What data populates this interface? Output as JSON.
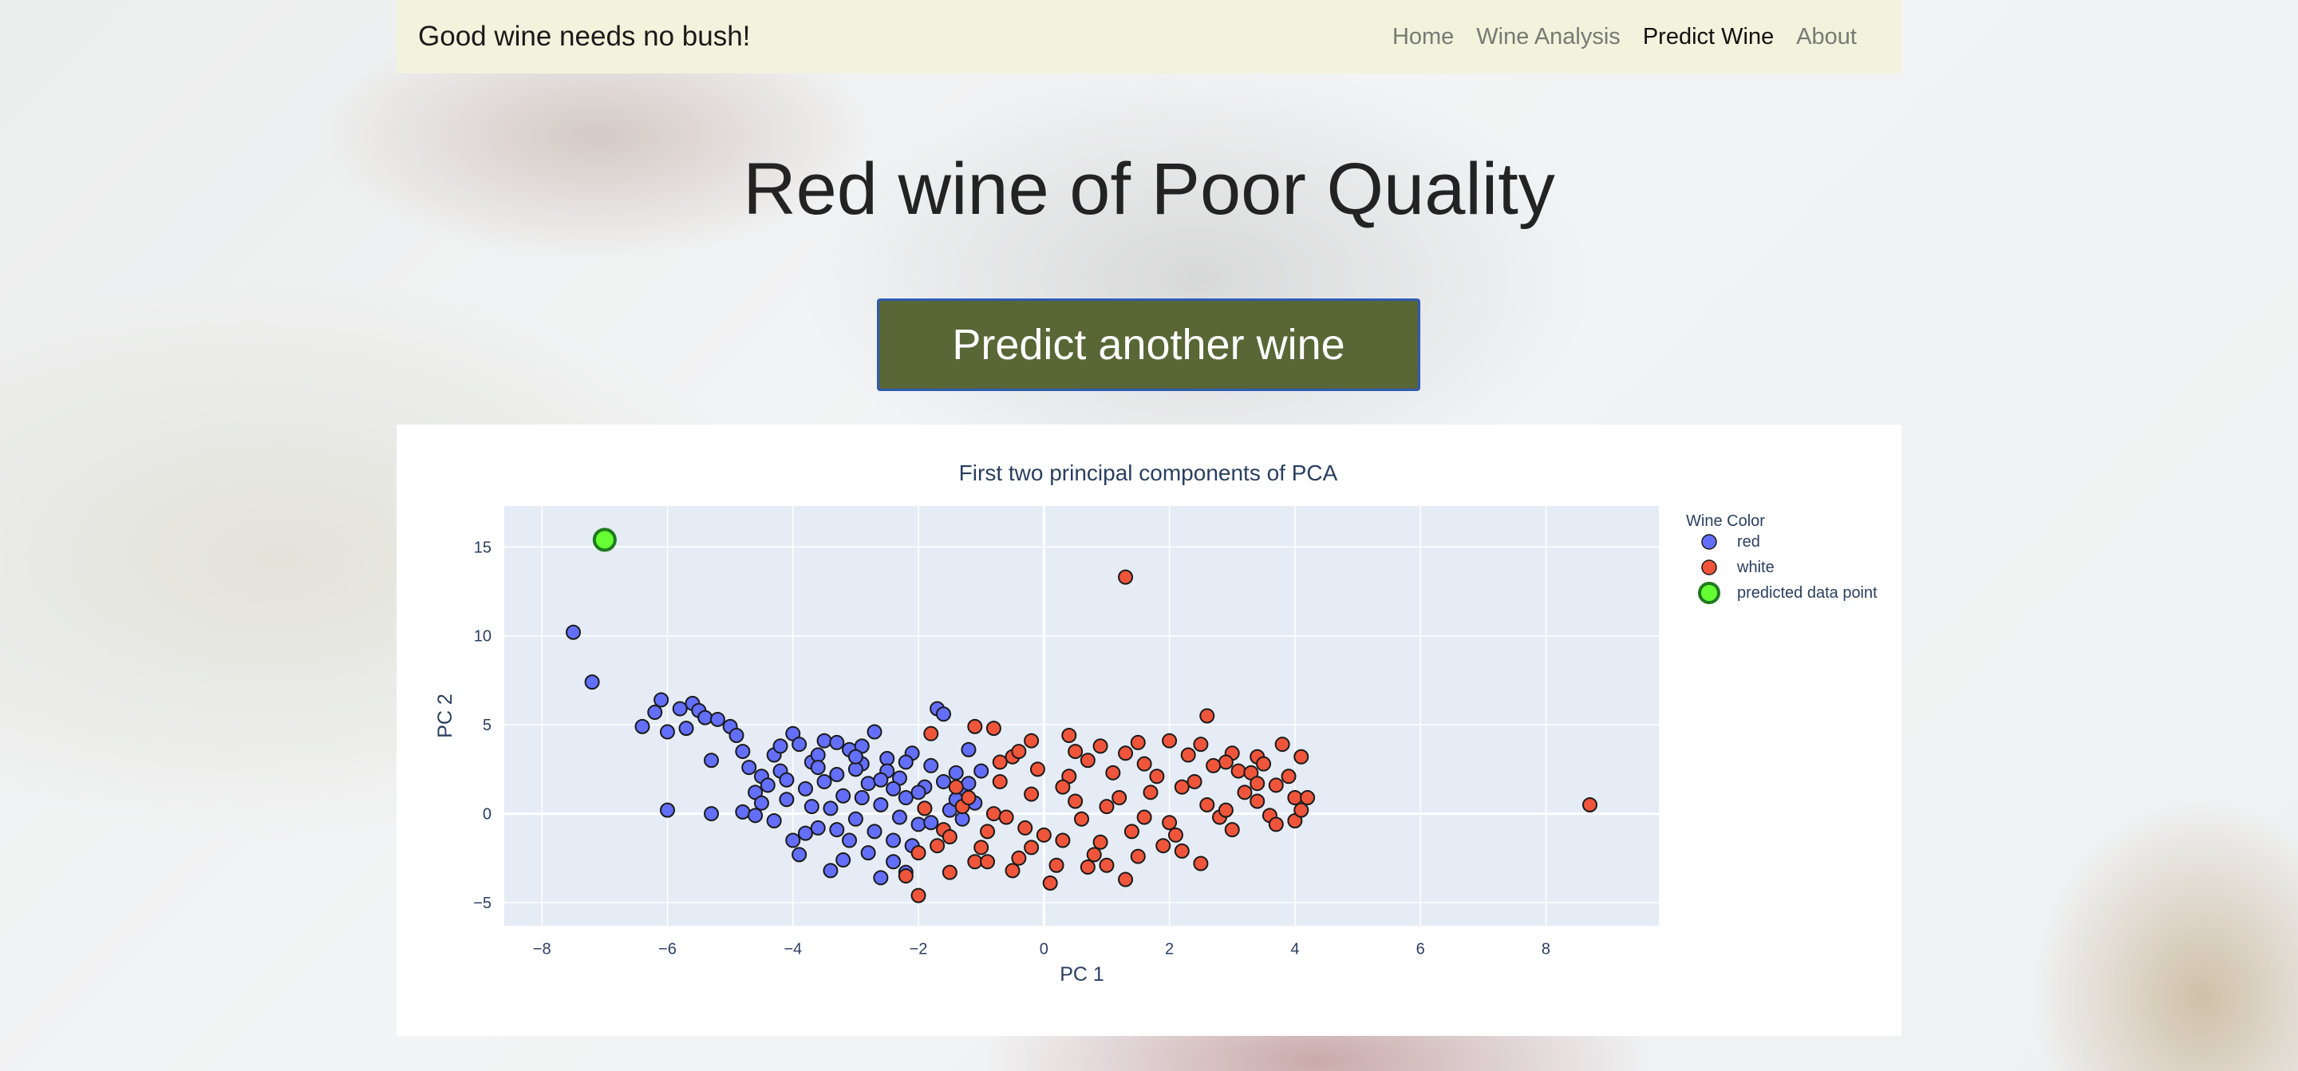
{
  "navbar": {
    "brand": "Good wine needs no bush!",
    "links": [
      {
        "label": "Home",
        "active": false
      },
      {
        "label": "Wine Analysis",
        "active": false
      },
      {
        "label": "Predict Wine",
        "active": true
      },
      {
        "label": "About",
        "active": false
      }
    ]
  },
  "headline": "Red wine of Poor Quality",
  "predict_button": "Predict another wine",
  "colors": {
    "navbar_bg": "#f1f3dc",
    "button_bg": "#596636",
    "button_border": "#2f5bb0",
    "plot_bg": "#e5ecf6",
    "red_series": "#636efa",
    "white_series": "#ef553b",
    "predicted": "#66ff33"
  },
  "chart_data": {
    "type": "scatter",
    "title": "First two principal components of PCA",
    "xlabel": "PC 1",
    "ylabel": "PC 2",
    "xlim": [
      -8.6,
      9.8
    ],
    "ylim": [
      -6.3,
      17.3
    ],
    "x_ticks": [
      "−8",
      "−6",
      "−4",
      "−2",
      "0",
      "2",
      "4",
      "6",
      "8"
    ],
    "x_tick_values": [
      -8,
      -6,
      -4,
      -2,
      0,
      2,
      4,
      6,
      8
    ],
    "y_ticks": [
      "−5",
      "0",
      "5",
      "10",
      "15"
    ],
    "y_tick_values": [
      -5,
      0,
      5,
      10,
      15
    ],
    "grid": true,
    "legend_title": "Wine Color",
    "legend_position": "right",
    "series": [
      {
        "name": "red",
        "color": "#636efa",
        "points": [
          [
            -7.5,
            10.2
          ],
          [
            -7.2,
            7.4
          ],
          [
            -6.4,
            4.9
          ],
          [
            -6.2,
            5.7
          ],
          [
            -6.1,
            6.4
          ],
          [
            -6.0,
            4.6
          ],
          [
            -5.8,
            5.9
          ],
          [
            -5.7,
            4.8
          ],
          [
            -5.6,
            6.2
          ],
          [
            -5.5,
            5.8
          ],
          [
            -5.4,
            5.4
          ],
          [
            -5.3,
            3.0
          ],
          [
            -5.2,
            5.3
          ],
          [
            -6.0,
            0.2
          ],
          [
            -5.3,
            0.0
          ],
          [
            -5.0,
            4.9
          ],
          [
            -4.9,
            4.4
          ],
          [
            -4.8,
            3.5
          ],
          [
            -4.7,
            2.6
          ],
          [
            -4.6,
            1.2
          ],
          [
            -4.8,
            0.1
          ],
          [
            -4.6,
            -0.1
          ],
          [
            -4.5,
            2.1
          ],
          [
            -4.4,
            1.6
          ],
          [
            -4.3,
            3.3
          ],
          [
            -4.2,
            2.4
          ],
          [
            -4.1,
            0.8
          ],
          [
            -4.0,
            4.5
          ],
          [
            -3.9,
            3.9
          ],
          [
            -3.8,
            1.4
          ],
          [
            -3.7,
            2.9
          ],
          [
            -3.6,
            -0.8
          ],
          [
            -3.5,
            4.1
          ],
          [
            -3.4,
            0.3
          ],
          [
            -3.3,
            2.2
          ],
          [
            -3.2,
            1.0
          ],
          [
            -3.1,
            3.6
          ],
          [
            -3.0,
            -0.3
          ],
          [
            -2.9,
            2.8
          ],
          [
            -2.8,
            1.7
          ],
          [
            -2.7,
            4.6
          ],
          [
            -2.6,
            0.5
          ],
          [
            -2.5,
            3.1
          ],
          [
            -2.4,
            -1.5
          ],
          [
            -2.3,
            2.0
          ],
          [
            -2.2,
            0.9
          ],
          [
            -2.1,
            3.4
          ],
          [
            -2.0,
            -0.6
          ],
          [
            -1.9,
            1.5
          ],
          [
            -1.8,
            2.7
          ],
          [
            -1.7,
            5.9
          ],
          [
            -1.6,
            5.6
          ],
          [
            -1.5,
            0.2
          ],
          [
            -1.4,
            2.3
          ],
          [
            -1.3,
            1.1
          ],
          [
            -1.2,
            3.6
          ],
          [
            -1.1,
            0.6
          ],
          [
            -1.0,
            2.4
          ],
          [
            -4.0,
            -1.5
          ],
          [
            -3.9,
            -2.3
          ],
          [
            -3.4,
            -3.2
          ],
          [
            -3.2,
            -2.6
          ],
          [
            -2.6,
            -3.6
          ],
          [
            -2.4,
            -2.7
          ],
          [
            -2.2,
            -3.3
          ],
          [
            -3.6,
            3.3
          ],
          [
            -3.3,
            4.0
          ],
          [
            -2.9,
            3.8
          ],
          [
            -2.5,
            2.4
          ],
          [
            -4.5,
            0.6
          ],
          [
            -4.2,
            3.8
          ],
          [
            -3.7,
            0.4
          ],
          [
            -3.1,
            -1.5
          ],
          [
            -2.7,
            -1.0
          ],
          [
            -2.3,
            -0.2
          ],
          [
            -3.5,
            1.8
          ],
          [
            -2.9,
            0.9
          ],
          [
            -2.4,
            1.4
          ],
          [
            -3.0,
            2.5
          ],
          [
            -2.0,
            1.2
          ],
          [
            -4.3,
            -0.4
          ],
          [
            -3.8,
            -1.1
          ],
          [
            -3.3,
            -0.9
          ],
          [
            -2.8,
            -2.2
          ],
          [
            -2.1,
            -1.8
          ],
          [
            -1.8,
            -0.5
          ],
          [
            -1.6,
            1.8
          ],
          [
            -1.3,
            -0.3
          ],
          [
            -4.1,
            1.9
          ],
          [
            -3.6,
            2.6
          ],
          [
            -3.0,
            3.2
          ],
          [
            -2.6,
            1.9
          ],
          [
            -2.2,
            2.9
          ],
          [
            -1.9,
            0.3
          ],
          [
            -1.4,
            0.8
          ],
          [
            -1.2,
            1.7
          ]
        ]
      },
      {
        "name": "white",
        "color": "#ef553b",
        "points": [
          [
            1.3,
            13.3
          ],
          [
            8.7,
            0.5
          ],
          [
            2.6,
            5.5
          ],
          [
            -1.8,
            4.5
          ],
          [
            -1.1,
            4.9
          ],
          [
            -0.8,
            4.8
          ],
          [
            -0.5,
            3.2
          ],
          [
            -0.2,
            4.1
          ],
          [
            0.4,
            4.4
          ],
          [
            0.9,
            3.8
          ],
          [
            1.5,
            4.0
          ],
          [
            2.0,
            4.1
          ],
          [
            2.5,
            3.9
          ],
          [
            3.0,
            3.4
          ],
          [
            3.4,
            3.2
          ],
          [
            3.8,
            3.9
          ],
          [
            4.1,
            3.2
          ],
          [
            4.0,
            0.9
          ],
          [
            4.2,
            0.9
          ],
          [
            4.0,
            -0.4
          ],
          [
            3.7,
            1.6
          ],
          [
            3.4,
            0.7
          ],
          [
            3.1,
            2.4
          ],
          [
            2.8,
            -0.2
          ],
          [
            2.5,
            -2.8
          ],
          [
            2.2,
            1.5
          ],
          [
            1.9,
            -1.8
          ],
          [
            1.6,
            2.8
          ],
          [
            1.3,
            -3.7
          ],
          [
            1.0,
            0.4
          ],
          [
            0.7,
            -3.0
          ],
          [
            0.4,
            2.1
          ],
          [
            0.1,
            -3.9
          ],
          [
            -0.2,
            1.1
          ],
          [
            -0.5,
            -3.2
          ],
          [
            -0.8,
            0.0
          ],
          [
            -1.1,
            -2.7
          ],
          [
            -1.4,
            1.5
          ],
          [
            -1.7,
            -1.8
          ],
          [
            -2.0,
            -2.2
          ],
          [
            -2.2,
            -3.5
          ],
          [
            -2.0,
            -4.6
          ],
          [
            -1.5,
            -3.3
          ],
          [
            -0.9,
            -1.0
          ],
          [
            -0.3,
            -0.8
          ],
          [
            0.3,
            -1.5
          ],
          [
            0.8,
            -2.3
          ],
          [
            1.4,
            -1.0
          ],
          [
            2.0,
            -0.5
          ],
          [
            2.6,
            0.5
          ],
          [
            3.2,
            1.2
          ],
          [
            3.6,
            -0.1
          ],
          [
            2.9,
            2.9
          ],
          [
            2.3,
            3.3
          ],
          [
            1.7,
            1.2
          ],
          [
            1.1,
            2.3
          ],
          [
            0.5,
            0.7
          ],
          [
            -0.1,
            2.5
          ],
          [
            -0.7,
            1.8
          ],
          [
            -1.3,
            0.4
          ],
          [
            -1.6,
            -0.9
          ],
          [
            -1.0,
            -1.9
          ],
          [
            -0.4,
            -2.5
          ],
          [
            0.2,
            -2.9
          ],
          [
            0.6,
            -0.3
          ],
          [
            1.2,
            0.9
          ],
          [
            1.8,
            2.1
          ],
          [
            2.4,
            1.8
          ],
          [
            3.0,
            -0.9
          ],
          [
            3.3,
            2.3
          ],
          [
            3.9,
            2.1
          ],
          [
            2.1,
            -1.2
          ],
          [
            1.5,
            -2.4
          ],
          [
            0.9,
            -1.6
          ],
          [
            0.0,
            -1.2
          ],
          [
            -0.6,
            -0.2
          ],
          [
            -1.2,
            0.9
          ],
          [
            -1.9,
            0.3
          ],
          [
            -0.4,
            3.5
          ],
          [
            0.7,
            3.0
          ],
          [
            1.3,
            3.4
          ],
          [
            2.7,
            2.7
          ],
          [
            3.5,
            2.8
          ],
          [
            4.1,
            0.2
          ],
          [
            3.7,
            -0.6
          ],
          [
            2.2,
            -2.1
          ],
          [
            1.0,
            -2.9
          ],
          [
            -0.2,
            -1.9
          ],
          [
            -0.9,
            -2.7
          ],
          [
            -1.5,
            -1.3
          ],
          [
            0.3,
            1.5
          ],
          [
            1.6,
            -0.2
          ],
          [
            2.9,
            0.2
          ],
          [
            3.4,
            1.7
          ],
          [
            -0.7,
            2.9
          ],
          [
            0.5,
            3.5
          ]
        ]
      },
      {
        "name": "predicted data point",
        "color": "#66ff33",
        "points": [
          [
            -7.0,
            15.4
          ]
        ]
      }
    ]
  }
}
